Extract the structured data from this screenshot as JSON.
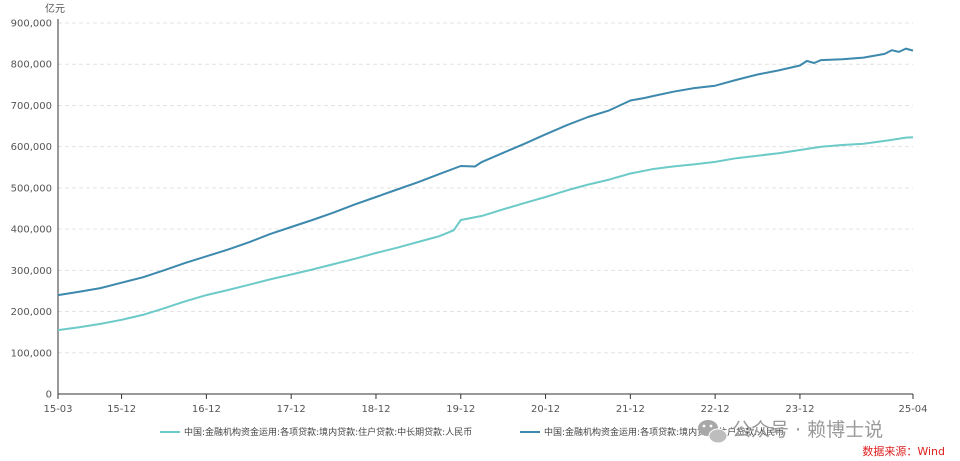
{
  "chart_data": {
    "type": "line",
    "unit_label": "亿元",
    "x_tick_labels": [
      "15-03",
      "15-12",
      "16-12",
      "17-12",
      "18-12",
      "19-12",
      "20-12",
      "21-12",
      "22-12",
      "23-12",
      "25-04"
    ],
    "x_range": [
      "2015-03",
      "2025-04"
    ],
    "ylim": [
      0,
      900000
    ],
    "y_ticks": [
      0,
      100000,
      200000,
      300000,
      400000,
      500000,
      600000,
      700000,
      800000,
      900000
    ],
    "y_tick_labels": [
      "0",
      "100,000",
      "200,000",
      "300,000",
      "400,000",
      "500,000",
      "600,000",
      "700,000",
      "800,000",
      "900,000"
    ],
    "grid": "horizontal-dashed",
    "legend_position": "bottom-center",
    "series": [
      {
        "name": "中国:金融机构资金运用:各项贷款:境内贷款:住户贷款:中长期贷款:人民币",
        "color": "#6ccac8",
        "points": [
          [
            "2015-03",
            155000
          ],
          [
            "2015-06",
            162000
          ],
          [
            "2015-09",
            170000
          ],
          [
            "2015-12",
            180000
          ],
          [
            "2016-03",
            192000
          ],
          [
            "2016-06",
            208000
          ],
          [
            "2016-09",
            225000
          ],
          [
            "2016-12",
            240000
          ],
          [
            "2017-03",
            252000
          ],
          [
            "2017-06",
            265000
          ],
          [
            "2017-09",
            278000
          ],
          [
            "2017-12",
            290000
          ],
          [
            "2018-03",
            302000
          ],
          [
            "2018-06",
            315000
          ],
          [
            "2018-09",
            328000
          ],
          [
            "2018-12",
            342000
          ],
          [
            "2019-03",
            355000
          ],
          [
            "2019-06",
            369000
          ],
          [
            "2019-09",
            383000
          ],
          [
            "2019-11",
            397000
          ],
          [
            "2019-12",
            422000
          ],
          [
            "2020-03",
            432000
          ],
          [
            "2020-06",
            448000
          ],
          [
            "2020-09",
            463000
          ],
          [
            "2020-12",
            478000
          ],
          [
            "2021-03",
            494000
          ],
          [
            "2021-06",
            508000
          ],
          [
            "2021-09",
            520000
          ],
          [
            "2021-12",
            535000
          ],
          [
            "2022-03",
            545000
          ],
          [
            "2022-06",
            552000
          ],
          [
            "2022-09",
            557000
          ],
          [
            "2022-12",
            563000
          ],
          [
            "2023-03",
            572000
          ],
          [
            "2023-06",
            578000
          ],
          [
            "2023-09",
            584000
          ],
          [
            "2023-12",
            592000
          ],
          [
            "2024-03",
            600000
          ],
          [
            "2024-06",
            604000
          ],
          [
            "2024-09",
            607000
          ],
          [
            "2024-12",
            614000
          ],
          [
            "2025-03",
            622000
          ],
          [
            "2025-04",
            623000
          ]
        ]
      },
      {
        "name": "中国:金融机构资金运用:各项贷款:境内贷款:住户贷款:人民币",
        "color": "#3d89ad",
        "points": [
          [
            "2015-03",
            240000
          ],
          [
            "2015-06",
            248000
          ],
          [
            "2015-09",
            257000
          ],
          [
            "2015-12",
            270000
          ],
          [
            "2016-03",
            283000
          ],
          [
            "2016-06",
            300000
          ],
          [
            "2016-09",
            318000
          ],
          [
            "2016-12",
            334000
          ],
          [
            "2017-03",
            350000
          ],
          [
            "2017-06",
            368000
          ],
          [
            "2017-09",
            388000
          ],
          [
            "2017-12",
            405000
          ],
          [
            "2018-03",
            422000
          ],
          [
            "2018-06",
            440000
          ],
          [
            "2018-09",
            460000
          ],
          [
            "2018-12",
            478000
          ],
          [
            "2019-03",
            496000
          ],
          [
            "2019-06",
            514000
          ],
          [
            "2019-09",
            534000
          ],
          [
            "2019-12",
            553000
          ],
          [
            "2020-02",
            552000
          ],
          [
            "2020-03",
            563000
          ],
          [
            "2020-06",
            585000
          ],
          [
            "2020-09",
            607000
          ],
          [
            "2020-12",
            630000
          ],
          [
            "2021-03",
            652000
          ],
          [
            "2021-06",
            672000
          ],
          [
            "2021-09",
            688000
          ],
          [
            "2021-12",
            712000
          ],
          [
            "2022-02",
            718000
          ],
          [
            "2022-03",
            722000
          ],
          [
            "2022-06",
            733000
          ],
          [
            "2022-09",
            742000
          ],
          [
            "2022-12",
            748000
          ],
          [
            "2023-03",
            762000
          ],
          [
            "2023-06",
            775000
          ],
          [
            "2023-09",
            785000
          ],
          [
            "2023-12",
            797000
          ],
          [
            "2024-01",
            808000
          ],
          [
            "2024-02",
            803000
          ],
          [
            "2024-03",
            810000
          ],
          [
            "2024-06",
            812000
          ],
          [
            "2024-09",
            816000
          ],
          [
            "2024-12",
            825000
          ],
          [
            "2025-01",
            834000
          ],
          [
            "2025-02",
            830000
          ],
          [
            "2025-03",
            838000
          ],
          [
            "2025-04",
            833000
          ]
        ]
      }
    ]
  },
  "watermark": {
    "text": "公众号 · 赖博士说",
    "icon": "wechat-icon"
  },
  "source": "数据来源：Wind"
}
